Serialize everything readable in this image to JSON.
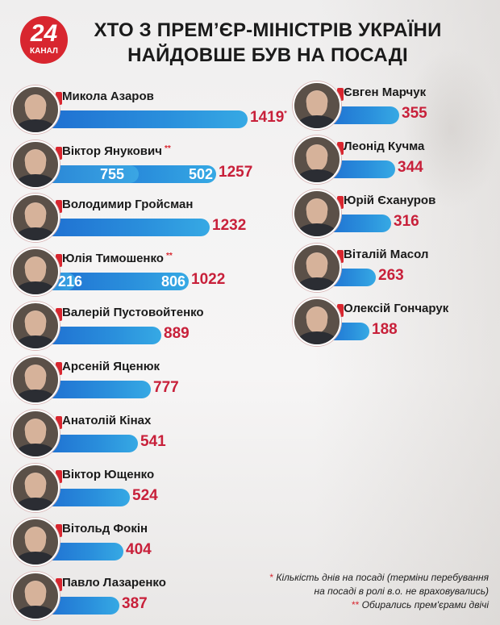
{
  "header": {
    "logo_number": "24",
    "logo_text": "КАНАЛ",
    "title_line1": "ХТО З ПРЕМ’ЄР-МІНІСТРІВ УКРАЇНИ",
    "title_line2": "НАЙДОВШЕ БУВ НА ПОСАДІ"
  },
  "colors": {
    "bar": "#2a8fdc",
    "value": "#c8203a",
    "accent": "#d8262f"
  },
  "left": [
    {
      "name": "Микола Азаров",
      "value": "1419",
      "mark": "*",
      "stars": ""
    },
    {
      "name": "Віктор Янукович",
      "value": "1257",
      "stars": "**",
      "seg1": "755",
      "seg2": "502"
    },
    {
      "name": "Володимир Гройсман",
      "value": "1232",
      "stars": ""
    },
    {
      "name": "Юлія Тимошенко",
      "value": "1022",
      "stars": "**",
      "seg1": "216",
      "seg2": "806"
    },
    {
      "name": "Валерій Пустовойтенко",
      "value": "889",
      "stars": ""
    },
    {
      "name": "Арсеній Яценюк",
      "value": "777",
      "stars": ""
    },
    {
      "name": "Анатолій Кінах",
      "value": "541",
      "stars": ""
    },
    {
      "name": "Віктор Ющенко",
      "value": "524",
      "stars": ""
    },
    {
      "name": "Вітольд Фокін",
      "value": "404",
      "stars": ""
    },
    {
      "name": "Павло Лазаренко",
      "value": "387",
      "stars": ""
    }
  ],
  "right": [
    {
      "name": "Євген Марчук",
      "value": "355"
    },
    {
      "name": "Леонід Кучма",
      "value": "344"
    },
    {
      "name": "Юрій Єхануров",
      "value": "316"
    },
    {
      "name": "Віталій Масол",
      "value": "263"
    },
    {
      "name": "Олексій Гончарук",
      "value": "188"
    }
  ],
  "footnotes": {
    "star1": "*",
    "line1": "Кількість днів на посаді (терміни перебування",
    "line2": "на посаді в ролі в.о. не враховувались)",
    "star2": "**",
    "line3": "Обирались прем'єрами двічі"
  },
  "chart_data": {
    "type": "bar",
    "title": "ХТО З ПРЕМ’ЄР-МІНІСТРІВ УКРАЇНИ НАЙДОВШЕ БУВ НА ПОСАДІ",
    "xlabel": "",
    "ylabel": "Кількість днів на посаді",
    "orientation": "horizontal",
    "categories": [
      "Микола Азаров",
      "Віктор Янукович",
      "Володимир Гройсман",
      "Юлія Тимошенко",
      "Валерій Пустовойтенко",
      "Арсеній Яценюк",
      "Анатолій Кінах",
      "Віктор Ющенко",
      "Вітольд Фокін",
      "Павло Лазаренко",
      "Євген Марчук",
      "Леонід Кучма",
      "Юрій Єхануров",
      "Віталій Масол",
      "Олексій Гончарук"
    ],
    "values": [
      1419,
      1257,
      1232,
      1022,
      889,
      777,
      541,
      524,
      404,
      387,
      355,
      344,
      316,
      263,
      188
    ],
    "segments": {
      "Віктор Янукович": [
        755,
        502
      ],
      "Юлія Тимошенко": [
        216,
        806
      ]
    },
    "annotations": [
      "* Кількість днів на посаді (терміни перебування на посаді в ролі в.о. не враховувались)",
      "** Обирались прем'єрами двічі"
    ]
  }
}
